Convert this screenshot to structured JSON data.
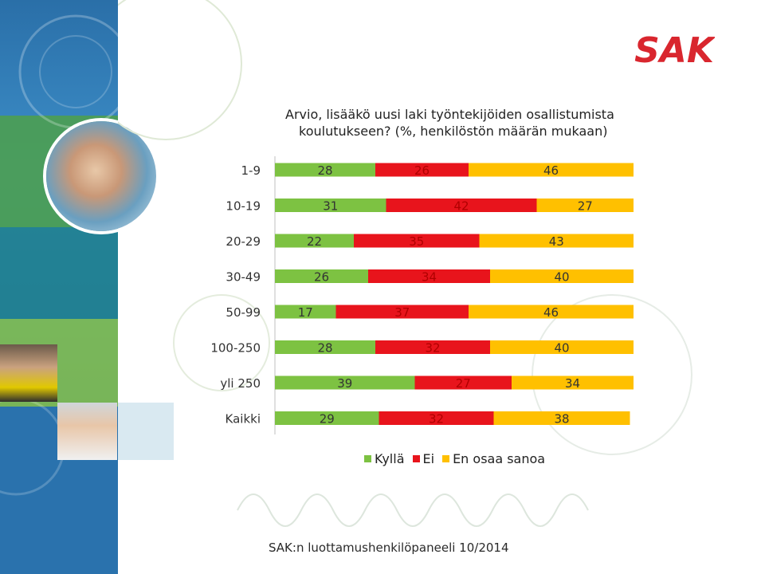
{
  "logo": {
    "text": "SAK",
    "color": "#d9262e"
  },
  "title": {
    "line1": "Arvio, lisääkö uusi laki työntekijöiden osallistumista",
    "line2": "koulutukseen? (%, henkilöstön määrän mukaan)"
  },
  "colors": {
    "kylla": "#7dc242",
    "ei": "#e8141c",
    "en_osaa": "#ffc000"
  },
  "chart_data": {
    "type": "bar",
    "orientation": "horizontal",
    "stacked": true,
    "title": "Arvio, lisääkö uusi laki työntekijöiden osallistumista koulutukseen? (%, henkilöstön määrän mukaan)",
    "categories": [
      "1-9",
      "10-19",
      "20-29",
      "30-49",
      "50-99",
      "100-250",
      "yli 250",
      "Kaikki"
    ],
    "series": [
      {
        "name": "Kyllä",
        "values": [
          28,
          31,
          22,
          26,
          17,
          28,
          39,
          29
        ]
      },
      {
        "name": "Ei",
        "values": [
          26,
          42,
          35,
          34,
          37,
          32,
          27,
          32
        ]
      },
      {
        "name": "En osaa sanoa",
        "values": [
          46,
          27,
          43,
          40,
          46,
          40,
          34,
          38
        ]
      }
    ],
    "xlim": [
      0,
      100
    ],
    "legend": "bottom"
  },
  "legend": {
    "kylla": "Kyllä",
    "ei": "Ei",
    "en_osaa": "En osaa sanoa"
  },
  "footer": "SAK:n luottamushenkilöpaneeli 10/2014"
}
